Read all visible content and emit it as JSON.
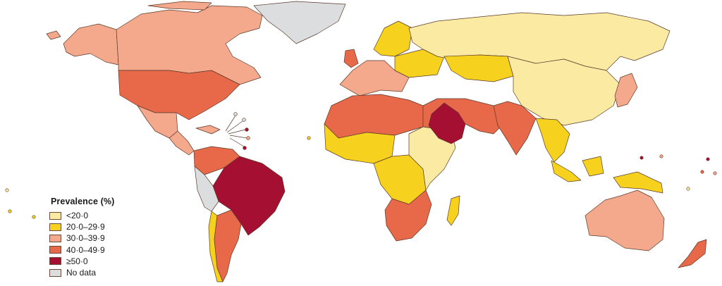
{
  "legend": {
    "title": "Prevalence (%)",
    "items": [
      {
        "label": "<20·0",
        "color": "#fbeaa2"
      },
      {
        "label": "20·0–29·9",
        "color": "#f6d21f"
      },
      {
        "label": "30·0–39·9",
        "color": "#f4a98c"
      },
      {
        "label": "40·0–49·9",
        "color": "#e8694a"
      },
      {
        "label": "≥50·0",
        "color": "#a50f32"
      },
      {
        "label": "No data",
        "color": "#dcdddf"
      }
    ]
  },
  "regions": [
    {
      "name": "alaska",
      "category": "30·0–39·9"
    },
    {
      "name": "canada",
      "category": "30·0–39·9"
    },
    {
      "name": "greenland",
      "category": "No data"
    },
    {
      "name": "usa",
      "category": "40·0–49·9"
    },
    {
      "name": "mexico",
      "category": "30·0–39·9"
    },
    {
      "name": "central-america",
      "category": "30·0–39·9"
    },
    {
      "name": "venezuela-colombia",
      "category": "40·0–49·9"
    },
    {
      "name": "brazil",
      "category": "≥50·0"
    },
    {
      "name": "peru-bolivia",
      "category": "No data"
    },
    {
      "name": "chile",
      "category": "20·0–29·9"
    },
    {
      "name": "argentina",
      "category": "40·0–49·9"
    },
    {
      "name": "uk-ireland",
      "category": "40·0–49·9"
    },
    {
      "name": "europe-west",
      "category": "30·0–39·9"
    },
    {
      "name": "scandinavia",
      "category": "20·0–29·9"
    },
    {
      "name": "europe-east",
      "category": "20·0–29·9"
    },
    {
      "name": "russia",
      "category": "<20·0"
    },
    {
      "name": "kazakhstan",
      "category": "20·0–29·9"
    },
    {
      "name": "china-mongolia",
      "category": "<20·0"
    },
    {
      "name": "japan-korea",
      "category": "30·0–39·9"
    },
    {
      "name": "north-africa",
      "category": "40·0–49·9"
    },
    {
      "name": "west-africa",
      "category": "20·0–29·9"
    },
    {
      "name": "central-africa",
      "category": "20·0–29·9"
    },
    {
      "name": "east-africa",
      "category": "<20·0"
    },
    {
      "name": "southern-africa",
      "category": "40·0–49·9"
    },
    {
      "name": "madagascar",
      "category": "20·0–29·9"
    },
    {
      "name": "saudi-arabia",
      "category": "≥50·0"
    },
    {
      "name": "middle-east",
      "category": "40·0–49·9"
    },
    {
      "name": "india",
      "category": "40·0–49·9"
    },
    {
      "name": "southeast-asia",
      "category": "20·0–29·9"
    },
    {
      "name": "indonesia",
      "category": "20·0–29·9"
    },
    {
      "name": "australia",
      "category": "30·0–39·9"
    },
    {
      "name": "new-zealand",
      "category": "40·0–49·9"
    }
  ]
}
